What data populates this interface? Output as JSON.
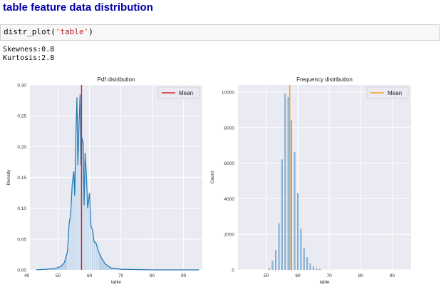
{
  "heading": "table feature data distribution",
  "code": {
    "func": "distr_plot(",
    "arg": "'table'",
    "close": ")"
  },
  "output": {
    "skewness": "Skewness:0.8",
    "kurtosis": "Kurtosis:2.8"
  },
  "chart_data": [
    {
      "type": "area",
      "title": "Pdf distribution",
      "xlabel": "table",
      "ylabel": "Density",
      "xlim": [
        41,
        96
      ],
      "ylim": [
        0,
        0.3
      ],
      "xticks": [
        "40",
        "50",
        "60",
        "70",
        "80",
        "90"
      ],
      "yticks": [
        "0.00",
        "0.05",
        "0.10",
        "0.15",
        "0.20",
        "0.25",
        "0.30"
      ],
      "legend": {
        "label": "Mean",
        "placement": "top-right"
      },
      "mean": 57.46,
      "grid": true,
      "line_color": "#1f77b4",
      "mean_color": "#d62728",
      "x": [
        43,
        49,
        51,
        52,
        53,
        53.5,
        54,
        54.5,
        55,
        55.3,
        55.6,
        56,
        56.3,
        56.6,
        57,
        57.3,
        57.6,
        58,
        58.3,
        58.6,
        59,
        59.4,
        60,
        60.5,
        61,
        61.5,
        62,
        63,
        64,
        65,
        66,
        67,
        70,
        80,
        95
      ],
      "y": [
        0.0,
        0.002,
        0.006,
        0.012,
        0.03,
        0.075,
        0.09,
        0.14,
        0.16,
        0.12,
        0.205,
        0.28,
        0.17,
        0.225,
        0.285,
        0.17,
        0.215,
        0.205,
        0.105,
        0.19,
        0.155,
        0.1,
        0.125,
        0.07,
        0.065,
        0.045,
        0.045,
        0.028,
        0.018,
        0.01,
        0.006,
        0.003,
        0.001,
        0.0,
        0.0
      ]
    },
    {
      "type": "bar",
      "title": "Frequency distribution",
      "xlabel": "table",
      "ylabel": "Count",
      "xlim": [
        41,
        96
      ],
      "ylim": [
        0,
        10400
      ],
      "xticks": [
        "50",
        "60",
        "70",
        "80",
        "90"
      ],
      "yticks": [
        "0",
        "2000",
        "4000",
        "6000",
        "8000",
        "10000"
      ],
      "legend": {
        "label": "Mean",
        "placement": "top-right"
      },
      "mean": 57.46,
      "grid": true,
      "bar_color": "#8fb8d8",
      "mean_color": "#ff9f1c",
      "x": [
        51,
        52,
        53,
        54,
        55,
        56,
        57,
        58,
        59,
        60,
        61,
        62,
        63,
        64,
        65,
        66,
        67
      ],
      "values": [
        60,
        500,
        1100,
        2600,
        6200,
        9900,
        9700,
        8400,
        6600,
        4300,
        2300,
        1200,
        700,
        350,
        180,
        80,
        40
      ]
    }
  ]
}
